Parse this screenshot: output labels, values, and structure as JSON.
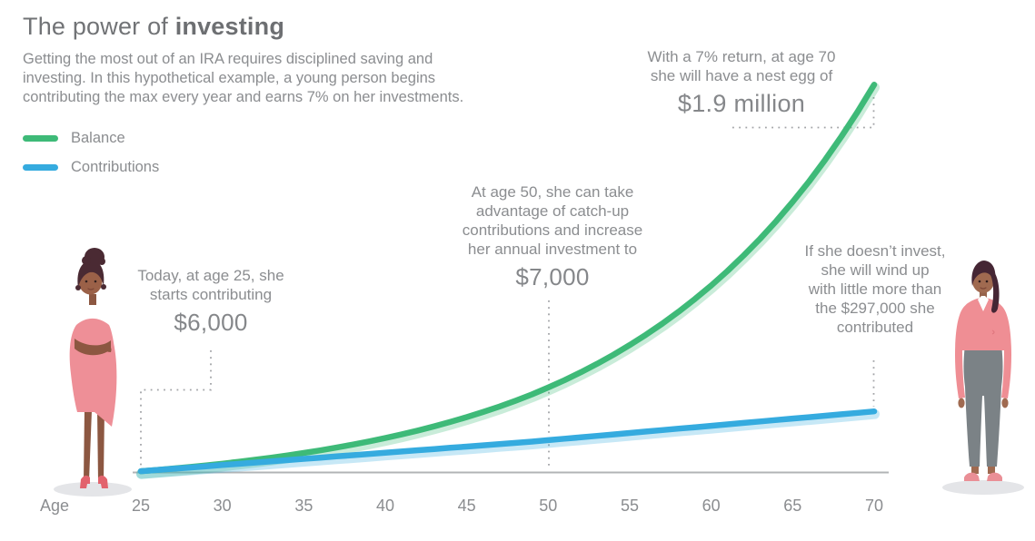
{
  "header": {
    "title_regular": "The power of ",
    "title_bold": "investing",
    "subtitle": "Getting the most out of an IRA requires disciplined saving and\ninvesting. In this hypothetical example, a young person begins\ncontributing the max every year and earns 7% on her investments."
  },
  "legend": [
    {
      "label": "Balance",
      "color": "#3eba78"
    },
    {
      "label": "Contributions",
      "color": "#35abdf"
    }
  ],
  "annotations": [
    {
      "id": "age25",
      "text": "Today, at age 25, she\nstarts contributing",
      "value": "$6,000"
    },
    {
      "id": "age50",
      "text": "At age 50, she can take\nadvantage of catch-up\ncontributions and increase\nher annual investment to",
      "value": "$7,000"
    },
    {
      "id": "age70",
      "text": "With a 7% return, at age 70\nshe will have a nest egg of",
      "value": "$1.9 million"
    },
    {
      "id": "noinvest",
      "text": "If she doesn’t invest,\nshe will wind up\nwith little more than\nthe $297,000 she\ncontributed",
      "value": ""
    }
  ],
  "x_axis": {
    "label": "Age"
  },
  "chart_data": {
    "type": "line",
    "title": "The power of investing",
    "xlabel": "Age",
    "ylabel": "",
    "x_ticks": [
      25,
      30,
      35,
      40,
      45,
      50,
      55,
      60,
      65,
      70
    ],
    "xlim": [
      25,
      70
    ],
    "ylim": [
      0,
      1900000
    ],
    "grid": false,
    "legend_position": "top-left",
    "x": [
      25,
      26,
      27,
      28,
      29,
      30,
      31,
      32,
      33,
      34,
      35,
      36,
      37,
      38,
      39,
      40,
      41,
      42,
      43,
      44,
      45,
      46,
      47,
      48,
      49,
      50,
      51,
      52,
      53,
      54,
      55,
      56,
      57,
      58,
      59,
      60,
      61,
      62,
      63,
      64,
      65,
      66,
      67,
      68,
      69,
      70
    ],
    "series": [
      {
        "name": "Balance",
        "color": "#3eba78",
        "values": [
          6000,
          12400,
          19300,
          26600,
          34500,
          42900,
          51900,
          61600,
          71900,
          82900,
          94700,
          107300,
          120800,
          135300,
          150800,
          167300,
          185000,
          204000,
          224300,
          246000,
          269200,
          294000,
          320600,
          349100,
          379500,
          413100,
          449000,
          487400,
          528500,
          572500,
          619600,
          670000,
          723900,
          781500,
          843200,
          909300,
          979900,
          1055500,
          1136400,
          1222900,
          1315500,
          1414600,
          1520700,
          1634100,
          1755500,
          1885400
        ]
      },
      {
        "name": "Contributions",
        "color": "#35abdf",
        "values": [
          6000,
          12000,
          18000,
          24000,
          30000,
          36000,
          42000,
          48000,
          54000,
          60000,
          66000,
          72000,
          78000,
          84000,
          90000,
          96000,
          102000,
          108000,
          114000,
          120000,
          126000,
          132000,
          138000,
          144000,
          150000,
          157000,
          164000,
          171000,
          178000,
          185000,
          192000,
          199000,
          206000,
          213000,
          220000,
          227000,
          234000,
          241000,
          248000,
          255000,
          262000,
          269000,
          276000,
          283000,
          290000,
          297000
        ]
      }
    ],
    "annotations": [
      {
        "age": 25,
        "label": "Today, at age 25, she starts contributing $6,000"
      },
      {
        "age": 50,
        "label": "At age 50, she can take advantage of catch-up contributions and increase her annual investment to $7,000"
      },
      {
        "age": 70,
        "label": "With a 7% return, at age 70 she will have a nest egg of $1.9 million"
      },
      {
        "age": 70,
        "label": "If she doesn’t invest, she will wind up with little more than the $297,000 she contributed"
      }
    ]
  }
}
